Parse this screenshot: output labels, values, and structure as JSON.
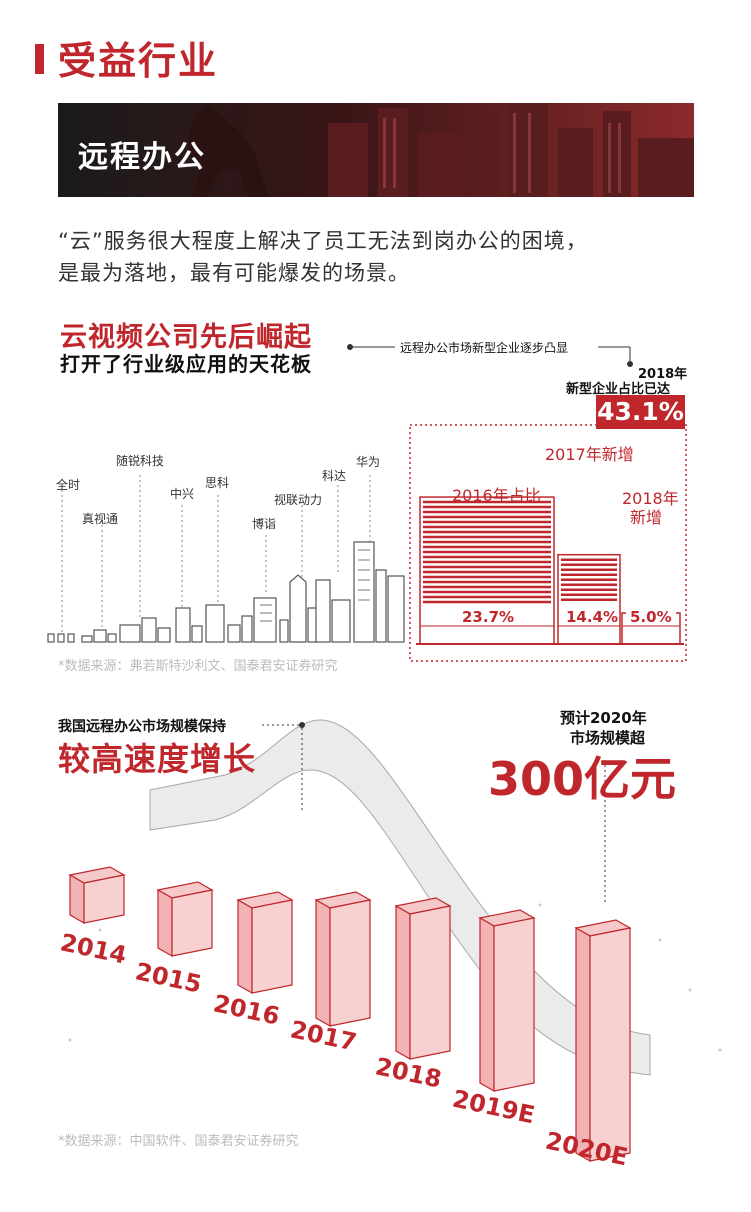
{
  "header": {
    "title": "受益行业"
  },
  "banner": {
    "title": "远程办公"
  },
  "intro": {
    "line1": "“云”服务很大程度上解决了员工无法到岗办公的困境，",
    "line2": "是最为落地，最有可能爆发的场景。"
  },
  "section1": {
    "title": "云视频公司先后崛起",
    "subtitle": "打开了行业级应用的天花板",
    "callout": "远程办公市场新型企业逐步凸显",
    "stat_label_line1": "2018年",
    "stat_label_line2": "新型企业占比已达",
    "stat_value": "43.1%",
    "companies": [
      "全时",
      "真视通",
      "随锐科技",
      "中兴",
      "思科",
      "博诣",
      "视联动力",
      "科达",
      "华为"
    ],
    "source": "*数据来源：弗若斯特沙利文、国泰君安证券研究"
  },
  "share_chart": {
    "type": "bar",
    "categories": [
      "2016年占比",
      "2017年新增",
      "2018年新增"
    ],
    "values": [
      23.7,
      14.4,
      5.0
    ],
    "labels": [
      "23.7%",
      "14.4%",
      "5.0%"
    ],
    "cat_label_2016": "2016年占比",
    "cat_label_2017": "2017年新增",
    "cat_label_2018_line1": "2018年",
    "cat_label_2018_line2": "新增"
  },
  "section2": {
    "small_title": "我国远程办公市场规模保持",
    "big_title": "较高速度增长",
    "forecast_line1": "预计2020年",
    "forecast_line2": "市场规模超",
    "forecast_value": "300亿元",
    "source": "*数据来源：中国软件、国泰君安证券研究"
  },
  "chart_data": {
    "type": "bar",
    "categories": [
      "2014",
      "2015",
      "2016",
      "2017",
      "2018",
      "2019E",
      "2020E"
    ]
  },
  "colors": {
    "accent": "#c0272d",
    "bar_fill": "#f3b9b9"
  }
}
